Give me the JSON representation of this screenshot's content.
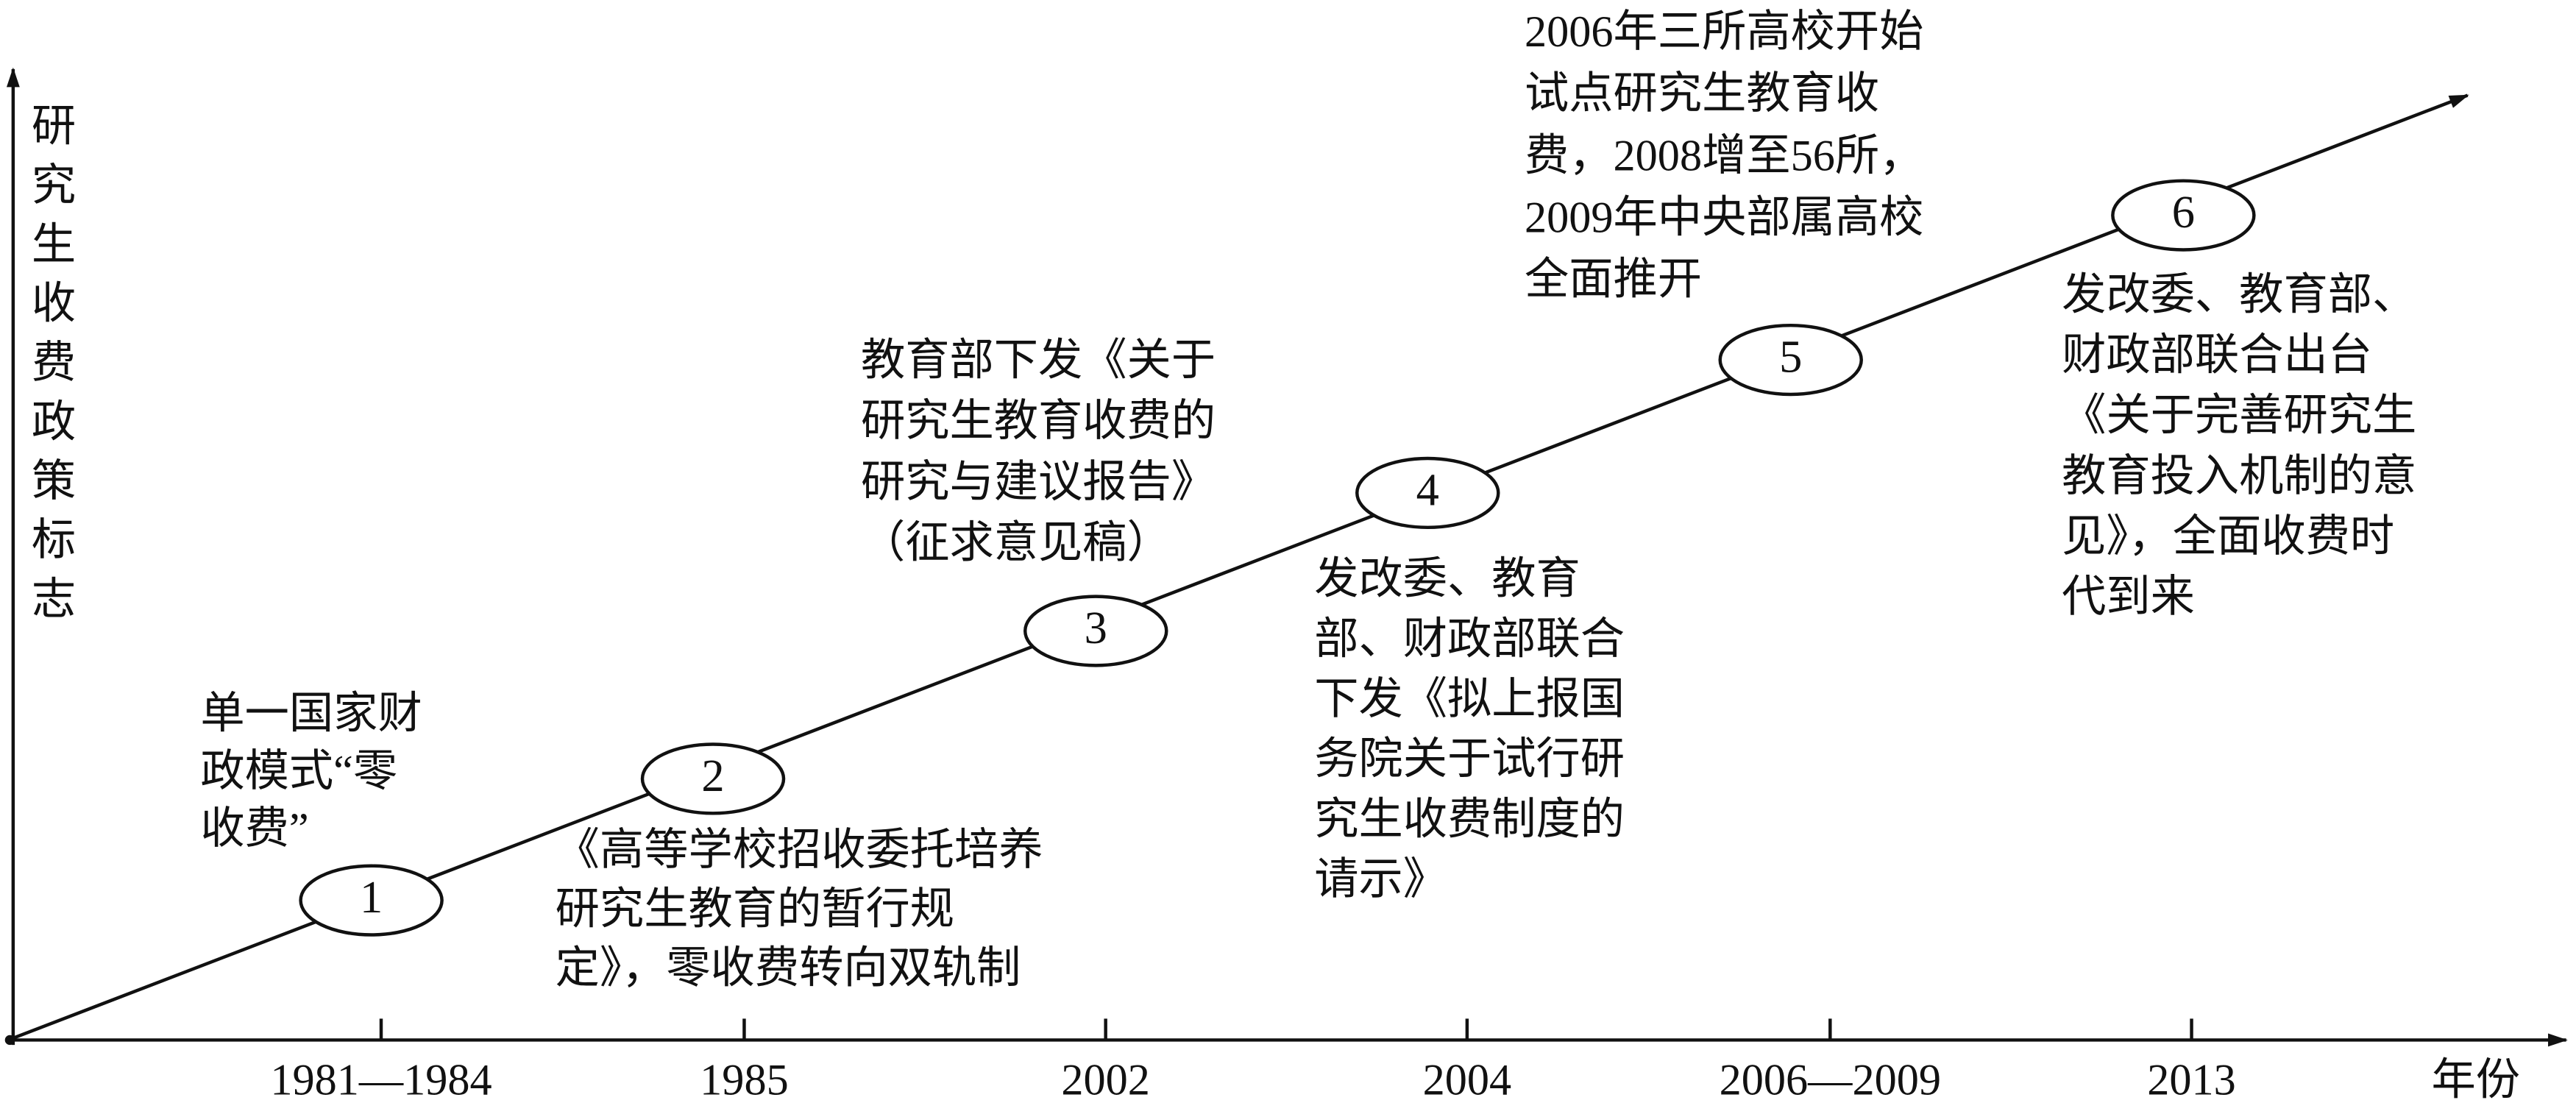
{
  "y_axis_label": "研究生收费政策标志",
  "x_axis_label": "年份",
  "years": [
    "1981—1984",
    "1985",
    "2002",
    "2004",
    "2006—2009",
    "2013"
  ],
  "events": [
    {
      "number": "1",
      "lines": [
        "单一国家财",
        "政模式“零",
        "收费”"
      ]
    },
    {
      "number": "2",
      "lines": [
        "《高等学校招收委托培养",
        "研究生教育的暂行规",
        "定》，零收费转向双轨制"
      ]
    },
    {
      "number": "3",
      "lines": [
        "教育部下发《关于",
        "研究生教育收费的",
        "研究与建议报告》",
        "（征求意见稿）"
      ]
    },
    {
      "number": "4",
      "lines": [
        "发改委、教育",
        "部、财政部联合",
        "下发《拟上报国",
        "务院关于试行研",
        "究生收费制度的",
        "请示》"
      ]
    },
    {
      "number": "5",
      "lines": [
        "2006年三所高校开始",
        "试点研究生教育收",
        "费，2008增至56所，",
        "2009年中央部属高校",
        "全面推开"
      ]
    },
    {
      "number": "6",
      "lines": [
        "发改委、教育部、",
        "财政部联合出台",
        "《关于完善研究生",
        "教育投入机制的意",
        "见》，全面收费时",
        "代到来"
      ]
    }
  ]
}
